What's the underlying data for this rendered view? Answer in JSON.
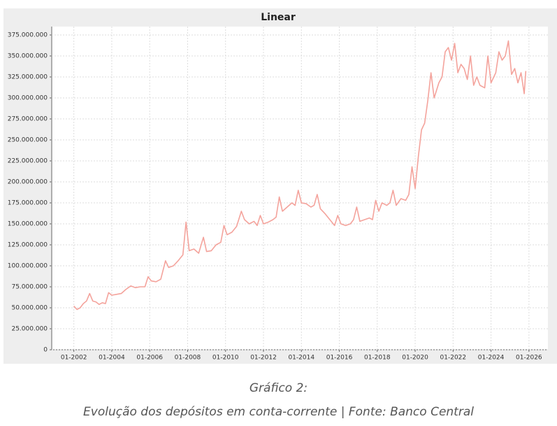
{
  "chart_data": {
    "type": "line",
    "title": "Linear",
    "x": [
      "2002-01",
      "2002-03",
      "2002-05",
      "2002-07",
      "2002-09",
      "2002-11",
      "2003-01",
      "2003-03",
      "2003-05",
      "2003-07",
      "2003-09",
      "2003-11",
      "2004-01",
      "2004-04",
      "2004-07",
      "2004-10",
      "2005-01",
      "2005-04",
      "2005-07",
      "2005-10",
      "2005-12",
      "2006-02",
      "2006-05",
      "2006-08",
      "2006-11",
      "2007-01",
      "2007-04",
      "2007-07",
      "2007-10",
      "2007-12",
      "2008-02",
      "2008-05",
      "2008-08",
      "2008-11",
      "2009-01",
      "2009-04",
      "2009-07",
      "2009-10",
      "2009-12",
      "2010-02",
      "2010-05",
      "2010-08",
      "2010-11",
      "2011-01",
      "2011-04",
      "2011-07",
      "2011-09",
      "2011-11",
      "2012-01",
      "2012-04",
      "2012-07",
      "2012-09",
      "2012-11",
      "2013-01",
      "2013-04",
      "2013-07",
      "2013-09",
      "2013-11",
      "2014-01",
      "2014-04",
      "2014-07",
      "2014-09",
      "2014-11",
      "2015-01",
      "2015-04",
      "2015-07",
      "2015-10",
      "2015-12",
      "2016-02",
      "2016-05",
      "2016-08",
      "2016-10",
      "2016-12",
      "2017-02",
      "2017-05",
      "2017-08",
      "2017-10",
      "2017-12",
      "2018-02",
      "2018-04",
      "2018-07",
      "2018-09",
      "2018-11",
      "2019-01",
      "2019-04",
      "2019-07",
      "2019-09",
      "2019-11",
      "2020-01",
      "2020-03",
      "2020-05",
      "2020-07",
      "2020-09",
      "2020-11",
      "2021-01",
      "2021-04",
      "2021-06",
      "2021-08",
      "2021-10",
      "2021-12",
      "2022-02",
      "2022-04",
      "2022-06",
      "2022-08",
      "2022-10",
      "2022-12",
      "2023-02",
      "2023-04",
      "2023-06",
      "2023-09",
      "2023-11",
      "2024-01",
      "2024-04",
      "2024-06",
      "2024-08",
      "2024-10",
      "2024-12",
      "2025-02",
      "2025-04",
      "2025-06",
      "2025-08",
      "2025-10",
      "2025-11"
    ],
    "series": [
      {
        "color": "#f4a39c",
        "values": [
          52000000,
          48000000,
          50000000,
          55000000,
          58000000,
          67000000,
          58000000,
          57000000,
          54000000,
          56000000,
          55000000,
          68000000,
          65000000,
          66000000,
          67000000,
          72000000,
          76000000,
          74000000,
          75000000,
          75000000,
          87000000,
          82000000,
          81000000,
          84000000,
          106000000,
          98000000,
          100000000,
          106000000,
          113000000,
          152000000,
          118000000,
          120000000,
          115000000,
          134000000,
          117000000,
          118000000,
          125000000,
          128000000,
          148000000,
          137000000,
          140000000,
          147000000,
          165000000,
          155000000,
          150000000,
          153000000,
          148000000,
          160000000,
          150000000,
          152000000,
          155000000,
          158000000,
          182000000,
          165000000,
          170000000,
          175000000,
          172000000,
          190000000,
          175000000,
          174000000,
          170000000,
          172000000,
          185000000,
          168000000,
          162000000,
          155000000,
          148000000,
          160000000,
          150000000,
          148000000,
          150000000,
          155000000,
          170000000,
          153000000,
          155000000,
          157000000,
          155000000,
          178000000,
          165000000,
          175000000,
          172000000,
          175000000,
          190000000,
          172000000,
          180000000,
          178000000,
          185000000,
          218000000,
          192000000,
          230000000,
          262000000,
          270000000,
          297000000,
          330000000,
          300000000,
          318000000,
          325000000,
          355000000,
          360000000,
          345000000,
          365000000,
          330000000,
          340000000,
          335000000,
          322000000,
          350000000,
          315000000,
          325000000,
          315000000,
          312000000,
          350000000,
          318000000,
          330000000,
          355000000,
          345000000,
          350000000,
          368000000,
          328000000,
          335000000,
          318000000,
          330000000,
          305000000,
          332000000
        ]
      }
    ],
    "xlim": [
      "2000-11",
      "2027-01"
    ],
    "xticks": [
      {
        "value": "2002-01",
        "label": "01-2002"
      },
      {
        "value": "2004-01",
        "label": "01-2004"
      },
      {
        "value": "2006-01",
        "label": "01-2006"
      },
      {
        "value": "2008-01",
        "label": "01-2008"
      },
      {
        "value": "2010-01",
        "label": "01-2010"
      },
      {
        "value": "2012-01",
        "label": "01-2012"
      },
      {
        "value": "2014-01",
        "label": "01-2014"
      },
      {
        "value": "2016-01",
        "label": "01-2016"
      },
      {
        "value": "2018-01",
        "label": "01-2018"
      },
      {
        "value": "2020-01",
        "label": "01-2020"
      },
      {
        "value": "2022-01",
        "label": "01-2022"
      },
      {
        "value": "2024-01",
        "label": "01-2024"
      },
      {
        "value": "2026-01",
        "label": "01-2026"
      }
    ],
    "ylim": [
      0,
      385000000
    ],
    "yticks": [
      0,
      {
        "value": 25000000,
        "label": "25.000.000"
      },
      {
        "value": 50000000,
        "label": "50.000.000"
      },
      {
        "value": 75000000,
        "label": "75.000.000"
      },
      {
        "value": 100000000,
        "label": "100.000.000"
      },
      {
        "value": 125000000,
        "label": "125.000.000"
      },
      {
        "value": 150000000,
        "label": "150.000.000"
      },
      {
        "value": 175000000,
        "label": "175.000.000"
      },
      {
        "value": 200000000,
        "label": "200.000.000"
      },
      {
        "value": 225000000,
        "label": "225.000.000"
      },
      {
        "value": 250000000,
        "label": "250.000.000"
      },
      {
        "value": 275000000,
        "label": "275.000.000"
      },
      {
        "value": 300000000,
        "label": "300.000.000"
      },
      {
        "value": 325000000,
        "label": "325.000.000"
      },
      {
        "value": 350000000,
        "label": "350.000.000"
      },
      {
        "value": 375000000,
        "label": "375.000.000"
      }
    ],
    "grid": true
  },
  "caption": {
    "label": "Gráfico 2:",
    "text": "Evolução dos depósitos em conta-corrente | Fonte: Banco Central"
  }
}
